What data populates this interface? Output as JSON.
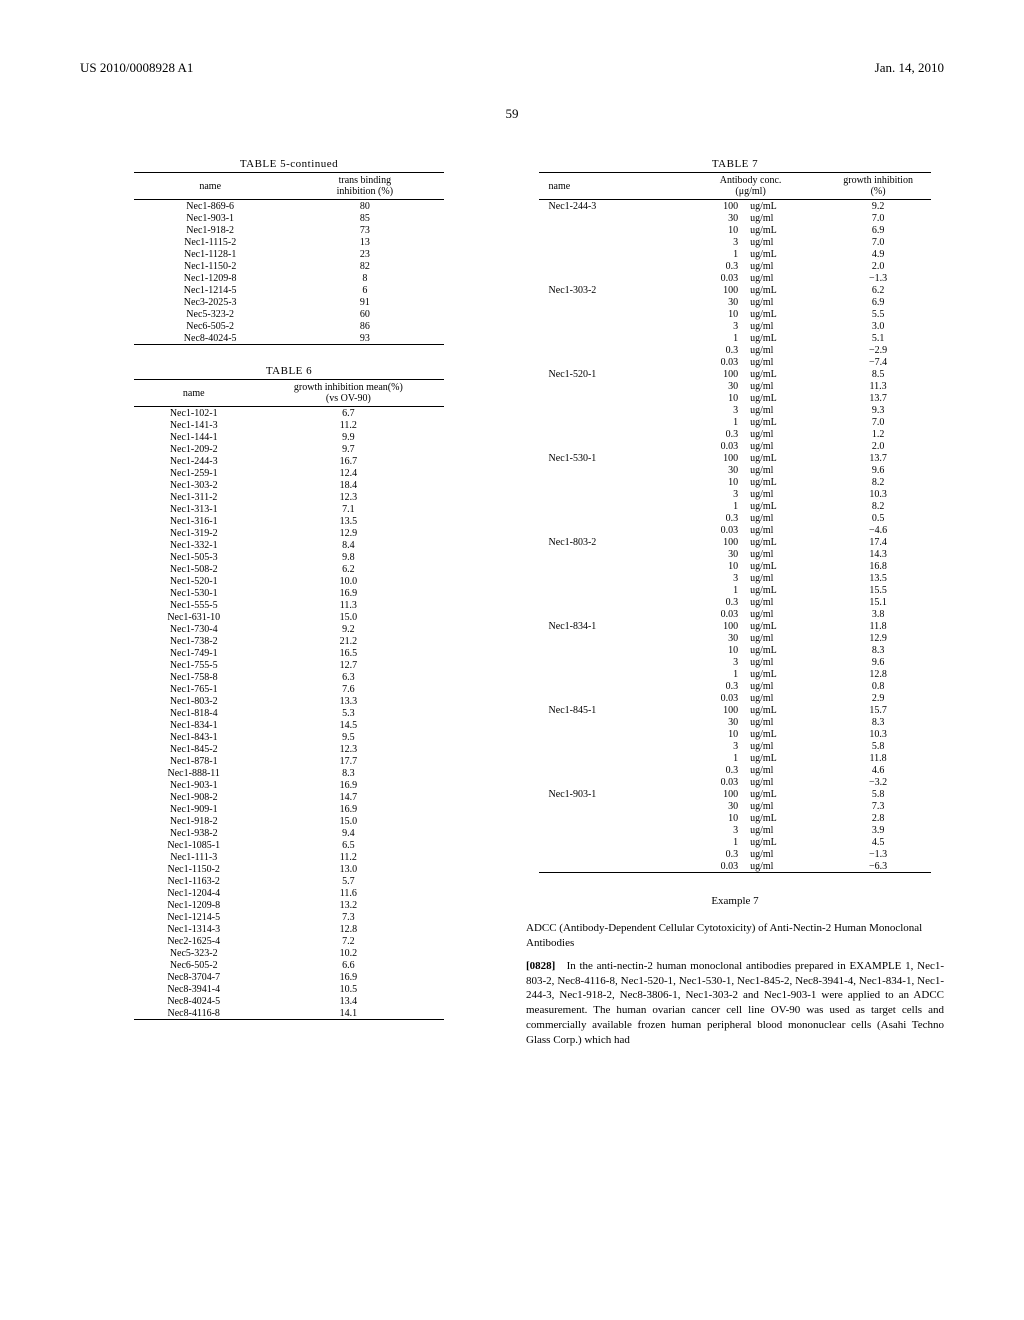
{
  "header": {
    "left": "US 2010/0008928 A1",
    "right": "Jan. 14, 2010"
  },
  "page_number": "59",
  "table5": {
    "caption": "TABLE 5-continued",
    "headers": [
      "name",
      "trans binding\ninhibition (%)"
    ],
    "rows": [
      [
        "Nec1-869-6",
        "80"
      ],
      [
        "Nec1-903-1",
        "85"
      ],
      [
        "Nec1-918-2",
        "73"
      ],
      [
        "Nec1-1115-2",
        "13"
      ],
      [
        "Nec1-1128-1",
        "23"
      ],
      [
        "Nec1-1150-2",
        "82"
      ],
      [
        "Nec1-1209-8",
        "8"
      ],
      [
        "Nec1-1214-5",
        "6"
      ],
      [
        "Nec3-2025-3",
        "91"
      ],
      [
        "Nec5-323-2",
        "60"
      ],
      [
        "Nec6-505-2",
        "86"
      ],
      [
        "Nec8-4024-5",
        "93"
      ]
    ]
  },
  "table6": {
    "caption": "TABLE 6",
    "headers": [
      "name",
      "growth inhibition mean(%)\n(vs OV-90)"
    ],
    "rows": [
      [
        "Nec1-102-1",
        "6.7"
      ],
      [
        "Nec1-141-3",
        "11.2"
      ],
      [
        "Nec1-144-1",
        "9.9"
      ],
      [
        "Nec1-209-2",
        "9.7"
      ],
      [
        "Nec1-244-3",
        "16.7"
      ],
      [
        "Nec1-259-1",
        "12.4"
      ],
      [
        "Nec1-303-2",
        "18.4"
      ],
      [
        "Nec1-311-2",
        "12.3"
      ],
      [
        "Nec1-313-1",
        "7.1"
      ],
      [
        "Nec1-316-1",
        "13.5"
      ],
      [
        "Nec1-319-2",
        "12.9"
      ],
      [
        "Nec1-332-1",
        "8.4"
      ],
      [
        "Nec1-505-3",
        "9.8"
      ],
      [
        "Nec1-508-2",
        "6.2"
      ],
      [
        "Nec1-520-1",
        "10.0"
      ],
      [
        "Nec1-530-1",
        "16.9"
      ],
      [
        "Nec1-555-5",
        "11.3"
      ],
      [
        "Nec1-631-10",
        "15.0"
      ],
      [
        "Nec1-730-4",
        "9.2"
      ],
      [
        "Nec1-738-2",
        "21.2"
      ],
      [
        "Nec1-749-1",
        "16.5"
      ],
      [
        "Nec1-755-5",
        "12.7"
      ],
      [
        "Nec1-758-8",
        "6.3"
      ],
      [
        "Nec1-765-1",
        "7.6"
      ],
      [
        "Nec1-803-2",
        "13.3"
      ],
      [
        "Nec1-818-4",
        "5.3"
      ],
      [
        "Nec1-834-1",
        "14.5"
      ],
      [
        "Nec1-843-1",
        "9.5"
      ],
      [
        "Nec1-845-2",
        "12.3"
      ],
      [
        "Nec1-878-1",
        "17.7"
      ],
      [
        "Nec1-888-11",
        "8.3"
      ],
      [
        "Nec1-903-1",
        "16.9"
      ],
      [
        "Nec1-908-2",
        "14.7"
      ],
      [
        "Nec1-909-1",
        "16.9"
      ],
      [
        "Nec1-918-2",
        "15.0"
      ],
      [
        "Nec1-938-2",
        "9.4"
      ],
      [
        "Nec1-1085-1",
        "6.5"
      ],
      [
        "Nec1-111-3",
        "11.2"
      ],
      [
        "Nec1-1150-2",
        "13.0"
      ],
      [
        "Nec1-1163-2",
        "5.7"
      ],
      [
        "Nec1-1204-4",
        "11.6"
      ],
      [
        "Nec1-1209-8",
        "13.2"
      ],
      [
        "Nec1-1214-5",
        "7.3"
      ],
      [
        "Nec1-1314-3",
        "12.8"
      ],
      [
        "Nec2-1625-4",
        "7.2"
      ],
      [
        "Nec5-323-2",
        "10.2"
      ],
      [
        "Nec6-505-2",
        "6.6"
      ],
      [
        "Nec8-3704-7",
        "16.9"
      ],
      [
        "Nec8-3941-4",
        "10.5"
      ],
      [
        "Nec8-4024-5",
        "13.4"
      ],
      [
        "Nec8-4116-8",
        "14.1"
      ]
    ]
  },
  "table7": {
    "caption": "TABLE 7",
    "headers": [
      "name",
      "Antibody conc.\n(μg/ml)",
      "growth inhibition\n(%)"
    ],
    "rows": [
      [
        "Nec1-244-3",
        "100",
        "ug/mL",
        "9.2"
      ],
      [
        "",
        "30",
        "ug/ml",
        "7.0"
      ],
      [
        "",
        "10",
        "ug/mL",
        "6.9"
      ],
      [
        "",
        "3",
        "ug/ml",
        "7.0"
      ],
      [
        "",
        "1",
        "ug/mL",
        "4.9"
      ],
      [
        "",
        "0.3",
        "ug/ml",
        "2.0"
      ],
      [
        "",
        "0.03",
        "ug/ml",
        "−1.3"
      ],
      [
        "Nec1-303-2",
        "100",
        "ug/mL",
        "6.2"
      ],
      [
        "",
        "30",
        "ug/ml",
        "6.9"
      ],
      [
        "",
        "10",
        "ug/mL",
        "5.5"
      ],
      [
        "",
        "3",
        "ug/ml",
        "3.0"
      ],
      [
        "",
        "1",
        "ug/mL",
        "5.1"
      ],
      [
        "",
        "0.3",
        "ug/ml",
        "−2.9"
      ],
      [
        "",
        "0.03",
        "ug/ml",
        "−7.4"
      ],
      [
        "Nec1-520-1",
        "100",
        "ug/mL",
        "8.5"
      ],
      [
        "",
        "30",
        "ug/ml",
        "11.3"
      ],
      [
        "",
        "10",
        "ug/mL",
        "13.7"
      ],
      [
        "",
        "3",
        "ug/ml",
        "9.3"
      ],
      [
        "",
        "1",
        "ug/mL",
        "7.0"
      ],
      [
        "",
        "0.3",
        "ug/ml",
        "1.2"
      ],
      [
        "",
        "0.03",
        "ug/ml",
        "2.0"
      ],
      [
        "Nec1-530-1",
        "100",
        "ug/mL",
        "13.7"
      ],
      [
        "",
        "30",
        "ug/ml",
        "9.6"
      ],
      [
        "",
        "10",
        "ug/mL",
        "8.2"
      ],
      [
        "",
        "3",
        "ug/ml",
        "10.3"
      ],
      [
        "",
        "1",
        "ug/mL",
        "8.2"
      ],
      [
        "",
        "0.3",
        "ug/ml",
        "0.5"
      ],
      [
        "",
        "0.03",
        "ug/ml",
        "−4.6"
      ],
      [
        "Nec1-803-2",
        "100",
        "ug/mL",
        "17.4"
      ],
      [
        "",
        "30",
        "ug/ml",
        "14.3"
      ],
      [
        "",
        "10",
        "ug/mL",
        "16.8"
      ],
      [
        "",
        "3",
        "ug/ml",
        "13.5"
      ],
      [
        "",
        "1",
        "ug/mL",
        "15.5"
      ],
      [
        "",
        "0.3",
        "ug/ml",
        "15.1"
      ],
      [
        "",
        "0.03",
        "ug/ml",
        "3.8"
      ],
      [
        "Nec1-834-1",
        "100",
        "ug/mL",
        "11.8"
      ],
      [
        "",
        "30",
        "ug/ml",
        "12.9"
      ],
      [
        "",
        "10",
        "ug/mL",
        "8.3"
      ],
      [
        "",
        "3",
        "ug/ml",
        "9.6"
      ],
      [
        "",
        "1",
        "ug/mL",
        "12.8"
      ],
      [
        "",
        "0.3",
        "ug/ml",
        "0.8"
      ],
      [
        "",
        "0.03",
        "ug/ml",
        "2.9"
      ],
      [
        "Nec1-845-1",
        "100",
        "ug/mL",
        "15.7"
      ],
      [
        "",
        "30",
        "ug/ml",
        "8.3"
      ],
      [
        "",
        "10",
        "ug/mL",
        "10.3"
      ],
      [
        "",
        "3",
        "ug/ml",
        "5.8"
      ],
      [
        "",
        "1",
        "ug/mL",
        "11.8"
      ],
      [
        "",
        "0.3",
        "ug/ml",
        "4.6"
      ],
      [
        "",
        "0.03",
        "ug/ml",
        "−3.2"
      ],
      [
        "Nec1-903-1",
        "100",
        "ug/mL",
        "5.8"
      ],
      [
        "",
        "30",
        "ug/ml",
        "7.3"
      ],
      [
        "",
        "10",
        "ug/mL",
        "2.8"
      ],
      [
        "",
        "3",
        "ug/ml",
        "3.9"
      ],
      [
        "",
        "1",
        "ug/mL",
        "4.5"
      ],
      [
        "",
        "0.3",
        "ug/ml",
        "−1.3"
      ],
      [
        "",
        "0.03",
        "ug/ml",
        "−6.3"
      ]
    ]
  },
  "example": {
    "heading": "Example 7",
    "title": "ADCC (Antibody-Dependent Cellular Cytotoxicity) of Anti-Nectin-2 Human Monoclonal Antibodies",
    "para_label": "[0828]",
    "para_body": "In the anti-nectin-2 human monoclonal antibodies prepared in EXAMPLE 1, Nec1-803-2, Nec8-4116-8, Nec1-520-1, Nec1-530-1, Nec1-845-2, Nec8-3941-4, Nec1-834-1, Nec1-244-3, Nec1-918-2, Nec8-3806-1, Nec1-303-2 and Nec1-903-1 were applied to an ADCC measurement. The human ovarian cancer cell line OV-90 was used as target cells and commercially available frozen human peripheral blood mononuclear cells (Asahi Techno Glass Corp.) which had"
  }
}
